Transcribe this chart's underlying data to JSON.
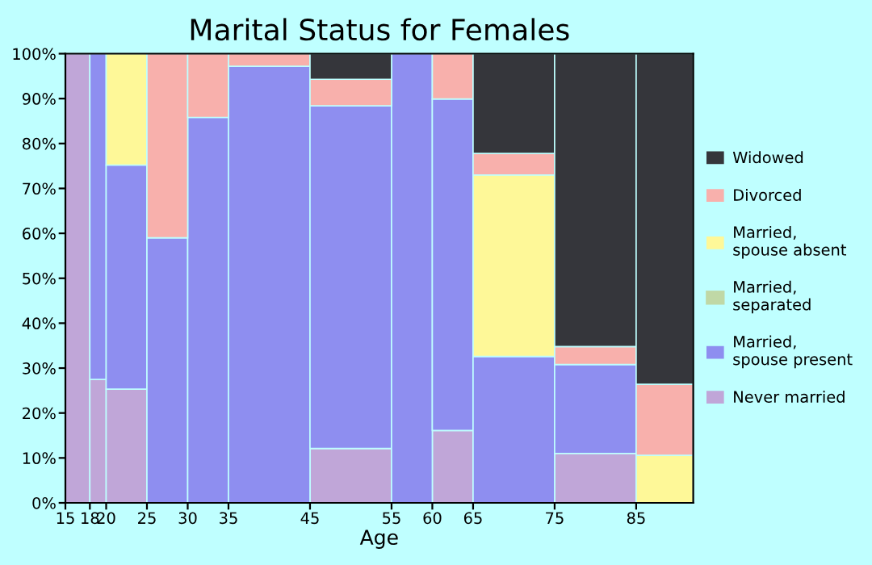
{
  "chart_data": {
    "type": "bar",
    "title": "Marital Status for Females",
    "xlabel": "Age",
    "stacked": true,
    "x": [
      16.5,
      19,
      22.5,
      27.5,
      32.5,
      40,
      50,
      57.5,
      62.5,
      70,
      80,
      88.5
    ],
    "xlim": [
      15,
      92
    ],
    "xticks": [
      15,
      18,
      20,
      25,
      30,
      35,
      45,
      55,
      60,
      65,
      75,
      85
    ],
    "ylim": [
      0,
      100
    ],
    "yticks": [
      {
        "value": 0,
        "label": "0%"
      },
      {
        "value": 10,
        "label": "10%"
      },
      {
        "value": 20,
        "label": "20%"
      },
      {
        "value": 30,
        "label": "30%"
      },
      {
        "value": 40,
        "label": "40%"
      },
      {
        "value": 50,
        "label": "50%"
      },
      {
        "value": 60,
        "label": "60%"
      },
      {
        "value": 70,
        "label": "70%"
      },
      {
        "value": 80,
        "label": "80%"
      },
      {
        "value": 90,
        "label": "90%"
      },
      {
        "value": 100,
        "label": "100%"
      }
    ],
    "legend": "right",
    "grid": false,
    "series": [
      {
        "name": "Never married",
        "color": "#c0a6d8",
        "values": [
          100,
          27.5,
          25.3,
          0,
          0,
          0,
          12.1,
          0,
          16.1,
          0,
          11.0,
          0
        ]
      },
      {
        "name": "Married, spouse present",
        "color": "#8e8ef0",
        "values": [
          0,
          72.5,
          49.9,
          59.0,
          85.8,
          97.2,
          76.3,
          100,
          73.8,
          32.6,
          19.8,
          0
        ]
      },
      {
        "name": "Married, separated",
        "color": "#c0d8a6",
        "values": [
          0,
          0,
          0,
          0,
          0,
          0,
          0,
          0,
          0,
          0,
          0,
          0
        ]
      },
      {
        "name": "Married, spouse absent",
        "color": "#fef898",
        "values": [
          0,
          0,
          24.8,
          0,
          0,
          0,
          0,
          0,
          0,
          40.4,
          0,
          10.6
        ]
      },
      {
        "name": "Divorced",
        "color": "#f8b0ac",
        "values": [
          0,
          0,
          0,
          41.0,
          14.2,
          2.8,
          5.9,
          0,
          10.1,
          4.8,
          4.0,
          15.8
        ]
      },
      {
        "name": "Widowed",
        "color": "#35363b",
        "values": [
          0,
          0,
          0,
          0,
          0,
          0,
          5.7,
          0,
          0,
          22.2,
          65.2,
          73.6
        ]
      }
    ]
  }
}
